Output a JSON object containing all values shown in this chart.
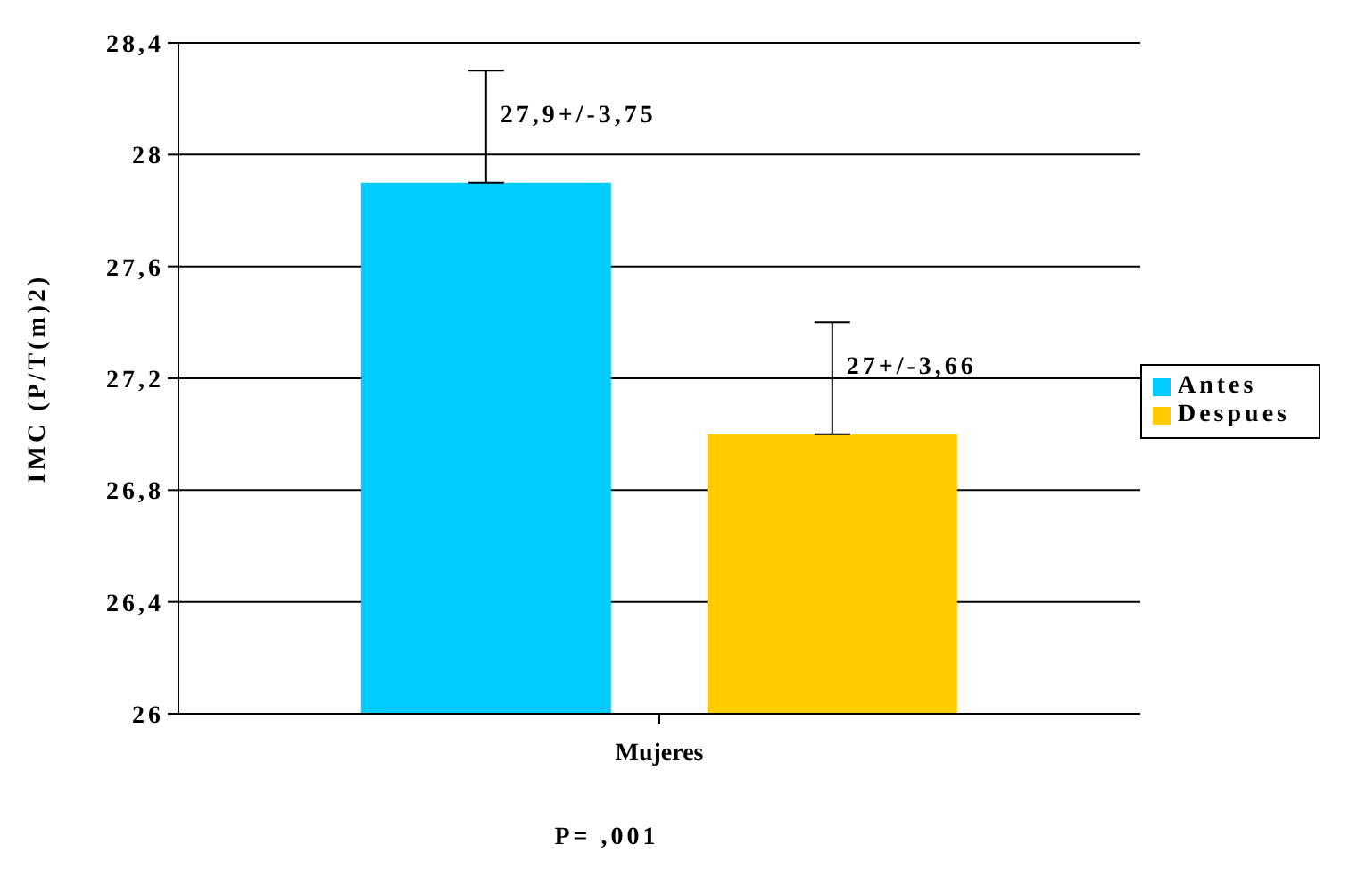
{
  "chart_data": {
    "type": "bar",
    "ylabel": "IMC (P/T(m)2)",
    "categories": [
      "Mujeres"
    ],
    "series": [
      {
        "name": "Antes",
        "color": "#00ccff",
        "values": [
          27.9
        ],
        "errors": [
          [
            27.9,
            28.3
          ]
        ],
        "value_labels": [
          "27,9+/-3,75"
        ]
      },
      {
        "name": "Despues",
        "color": "#ffcc00",
        "values": [
          27.0
        ],
        "errors": [
          [
            27.0,
            27.4
          ]
        ],
        "value_labels": [
          "27+/-3,66"
        ]
      }
    ],
    "ylim": [
      26,
      28.4
    ],
    "yticks": [
      26,
      {
        "value": 26.4,
        "label": "26,4"
      },
      {
        "value": 26.8,
        "label": "26,8"
      },
      {
        "value": 27.2,
        "label": "27,2"
      },
      {
        "value": 27.6,
        "label": "27,6"
      },
      28,
      {
        "value": 28.4,
        "label": "28,4"
      }
    ],
    "grid": "y",
    "legend": "right",
    "annotations": [
      "P= ,001"
    ]
  }
}
